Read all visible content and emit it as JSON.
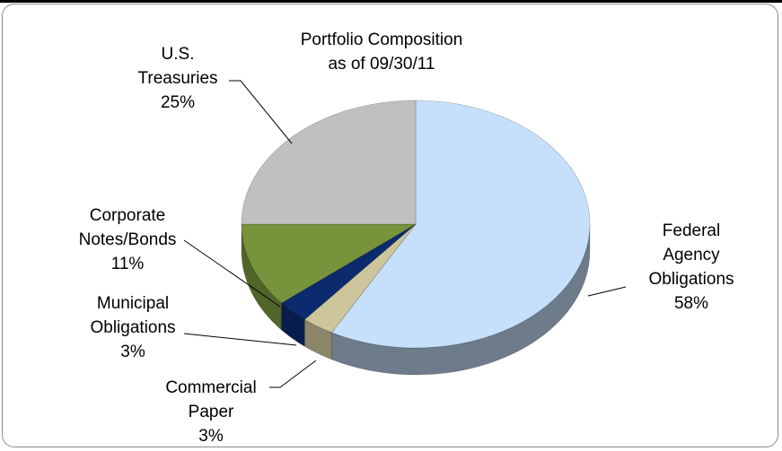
{
  "chart_data": {
    "type": "pie",
    "title": "Portfolio Composition",
    "subtitle": "as of 09/30/11",
    "categories": [
      "Federal Agency Obligations",
      "Commercial Paper",
      "Municipal Obligations",
      "Corporate Notes/Bonds",
      "U.S. Treasuries"
    ],
    "values": [
      58,
      3,
      3,
      11,
      25
    ],
    "value_labels": [
      "58%",
      "3%",
      "3%",
      "11%",
      "25%"
    ],
    "colors": [
      "#c6e0fb",
      "#cdc59c",
      "#0c2a6e",
      "#77933c",
      "#c0c0c0"
    ]
  }
}
